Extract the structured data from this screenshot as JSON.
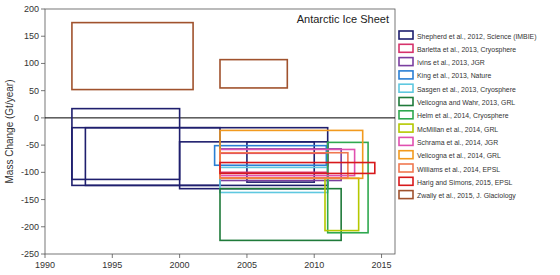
{
  "chart_data": {
    "type": "box_range",
    "title": "Antarctic Ice Sheet",
    "y_label": "Mass Change (Gt/year)",
    "xlim": [
      1990,
      2016
    ],
    "xticks": [
      1990,
      1995,
      2000,
      2005,
      2010,
      2015
    ],
    "ylim": [
      -250,
      200
    ],
    "yticks": [
      -250,
      -200,
      -150,
      -100,
      -50,
      0,
      50,
      100,
      150,
      200
    ],
    "grid": false,
    "legend": "right",
    "series": [
      {
        "name": "Shepherd et al., 2012, Science (IMBIE)",
        "color": "#1f1f6e",
        "boxes": [
          {
            "x0": 1992,
            "x1": 2000,
            "y0": -113,
            "y1": 17
          },
          {
            "x0": 1993,
            "x1": 2003,
            "y0": -124,
            "y1": -18
          },
          {
            "x0": 1992,
            "x1": 2011,
            "y0": -124,
            "y1": -18
          },
          {
            "x0": 2000,
            "x1": 2011,
            "y0": -130,
            "y1": -44
          },
          {
            "x0": 2005,
            "x1": 2010,
            "y0": -118,
            "y1": -44
          }
        ]
      },
      {
        "name": "Barletta et al., 2013, Cryosphere",
        "color": "#d6336c",
        "boxes": [
          {
            "x0": 2003,
            "x1": 2011,
            "y0": -100,
            "y1": -65
          }
        ]
      },
      {
        "name": "Ivins et al., 2013, JGR",
        "color": "#7b3fa0",
        "boxes": [
          {
            "x0": 2003,
            "x1": 2012,
            "y0": -115,
            "y1": -57
          }
        ]
      },
      {
        "name": "King et al., 2013, Nature",
        "color": "#2a7fd4",
        "boxes": [
          {
            "x0": 2002.6,
            "x1": 2010.9,
            "y0": -87,
            "y1": -51
          }
        ]
      },
      {
        "name": "Sasgen et al., 2013, Cryosphere",
        "color": "#5fc8e0",
        "boxes": [
          {
            "x0": 2003,
            "x1": 2011,
            "y0": -137,
            "y1": -91
          }
        ]
      },
      {
        "name": "Velicogna and Wahr, 2013, GRL",
        "color": "#1f7a3a",
        "boxes": [
          {
            "x0": 2003,
            "x1": 2012,
            "y0": -225,
            "y1": -130
          }
        ]
      },
      {
        "name": "Helm et al., 2014, Cryosphere",
        "color": "#2fa84f",
        "boxes": [
          {
            "x0": 2011,
            "x1": 2014,
            "y0": -211,
            "y1": -45
          }
        ]
      },
      {
        "name": "McMillan et al., 2014, GRL",
        "color": "#b5c800",
        "boxes": [
          {
            "x0": 2010.8,
            "x1": 2013.3,
            "y0": -207,
            "y1": -111
          }
        ]
      },
      {
        "name": "Schrama et al., 2014, JGR",
        "color": "#e050b0",
        "boxes": [
          {
            "x0": 2003,
            "x1": 2013,
            "y0": -106,
            "y1": -58
          }
        ]
      },
      {
        "name": "Velicogna et al., 2014, GRL",
        "color": "#f29a1e",
        "boxes": [
          {
            "x0": 2003,
            "x1": 2013.6,
            "y0": -111,
            "y1": -23
          }
        ]
      },
      {
        "name": "Williams et al., 2014, EPSL",
        "color": "#f07850",
        "boxes": [
          {
            "x0": 2003,
            "x1": 2012.5,
            "y0": -110,
            "y1": -64
          }
        ]
      },
      {
        "name": "Harig and Simons, 2015, EPSL",
        "color": "#d7191c",
        "boxes": [
          {
            "x0": 2003,
            "x1": 2014.5,
            "y0": -102,
            "y1": -82
          }
        ]
      },
      {
        "name": "Zwally et al., 2015, J. Glaciology",
        "color": "#a0522d",
        "boxes": [
          {
            "x0": 1992,
            "x1": 2001,
            "y0": 52,
            "y1": 175
          },
          {
            "x0": 2003,
            "x1": 2008,
            "y0": 55,
            "y1": 107
          }
        ]
      }
    ]
  }
}
